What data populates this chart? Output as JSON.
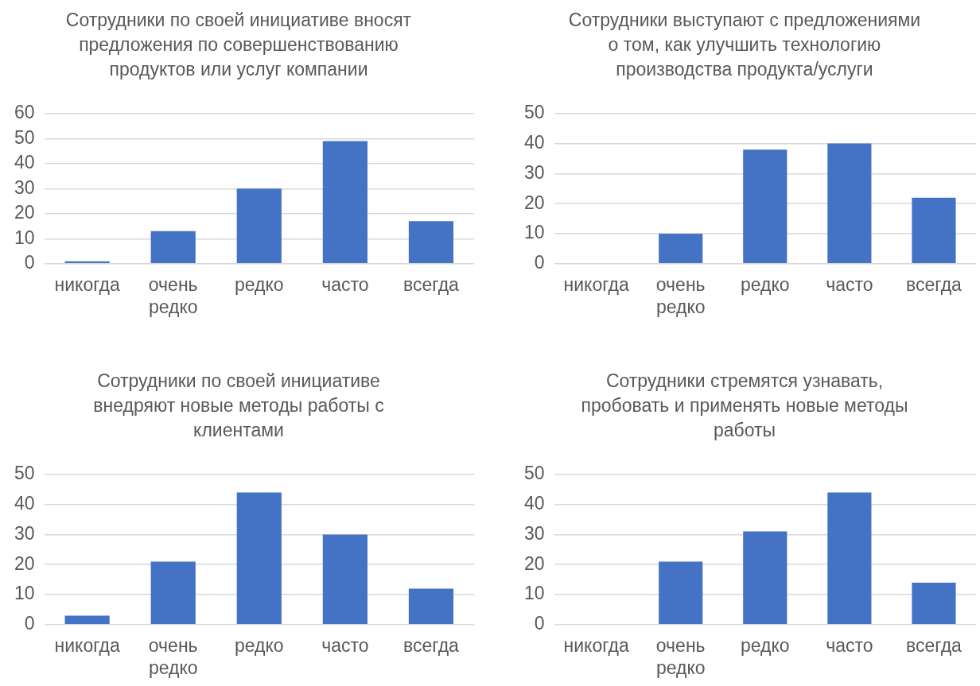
{
  "chart_data": [
    {
      "type": "bar",
      "title": "Сотрудники по своей инициативе вносят предложения по совершенствованию продуктов или услуг компании",
      "categories": [
        "никогда",
        "очень редко",
        "редко",
        "часто",
        "всегда"
      ],
      "values": [
        1,
        13,
        30,
        49,
        17
      ],
      "color": "#4472c4",
      "ylim": [
        0,
        60
      ],
      "yticks": [
        0,
        10,
        20,
        30,
        40,
        50,
        60
      ],
      "grid": "y"
    },
    {
      "type": "bar",
      "title": "Сотрудники выступают с предложениями о том, как улучшить технологию производства продукта/услуги",
      "categories": [
        "никогда",
        "очень редко",
        "редко",
        "часто",
        "всегда"
      ],
      "values": [
        0,
        10,
        38,
        40,
        22
      ],
      "color": "#4472c4",
      "ylim": [
        0,
        50
      ],
      "yticks": [
        0,
        10,
        20,
        30,
        40,
        50
      ],
      "grid": "y"
    },
    {
      "type": "bar",
      "title": "Сотрудники по своей инициативе внедряют новые методы работы с клиентами",
      "categories": [
        "никогда",
        "очень редко",
        "редко",
        "часто",
        "всегда"
      ],
      "values": [
        3,
        21,
        44,
        30,
        12
      ],
      "color": "#4472c4",
      "ylim": [
        0,
        50
      ],
      "yticks": [
        0,
        10,
        20,
        30,
        40,
        50
      ],
      "grid": "y"
    },
    {
      "type": "bar",
      "title": "Сотрудники стремятся узнавать, пробовать и применять новые методы работы",
      "categories": [
        "никогда",
        "очень редко",
        "редко",
        "часто",
        "всегда"
      ],
      "values": [
        0,
        21,
        31,
        44,
        14
      ],
      "color": "#4472c4",
      "ylim": [
        0,
        50
      ],
      "yticks": [
        0,
        10,
        20,
        30,
        40,
        50
      ],
      "grid": "y"
    }
  ]
}
